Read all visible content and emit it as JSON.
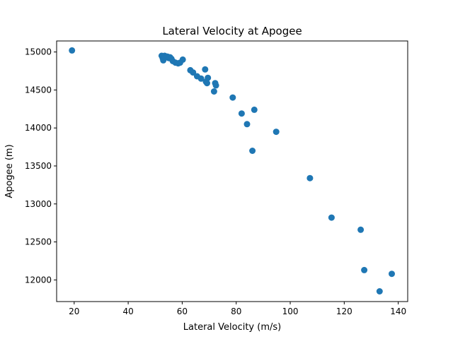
{
  "chart_data": {
    "type": "scatter",
    "title": "Lateral Velocity at Apogee",
    "xlabel": "Lateral Velocity (m/s)",
    "ylabel": "Apogee (m)",
    "xlim": [
      13.5,
      143.5
    ],
    "ylim": [
      11715,
      15145
    ],
    "xticks": [
      20,
      40,
      60,
      80,
      100,
      120,
      140
    ],
    "yticks": [
      12000,
      12500,
      13000,
      13500,
      14000,
      14500,
      15000
    ],
    "grid": false,
    "legend": "none",
    "marker_color": "#1f77b4",
    "x": [
      19.2,
      52.4,
      52.8,
      53.0,
      53.5,
      54.0,
      54.5,
      55.0,
      55.5,
      56.0,
      56.5,
      57.5,
      58.5,
      59.2,
      60.2,
      63.0,
      64.0,
      65.5,
      67.0,
      68.5,
      68.8,
      69.2,
      69.5,
      71.8,
      72.2,
      72.5,
      78.7,
      82.0,
      84.0,
      86.0,
      86.7,
      94.8,
      107.3,
      115.3,
      126.1,
      127.4,
      133.1,
      137.6
    ],
    "y": [
      15020,
      14950,
      14920,
      14890,
      14950,
      14930,
      14940,
      14920,
      14930,
      14910,
      14880,
      14860,
      14850,
      14860,
      14900,
      14760,
      14730,
      14680,
      14650,
      14770,
      14610,
      14590,
      14660,
      14480,
      14590,
      14560,
      14400,
      14190,
      14050,
      13700,
      14240,
      13950,
      13340,
      12820,
      12660,
      12130,
      11850,
      12080
    ]
  }
}
